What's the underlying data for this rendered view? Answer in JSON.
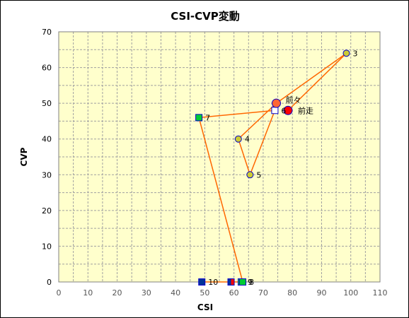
{
  "chart_data": {
    "type": "scatter",
    "title": "CSI-CVP変動",
    "xlabel": "CSI",
    "ylabel": "CVP",
    "xlim": [
      0,
      110
    ],
    "ylim": [
      0,
      70
    ],
    "x_major_ticks": [
      0,
      10,
      20,
      30,
      40,
      50,
      60,
      70,
      80,
      90,
      100,
      110
    ],
    "y_major_ticks": [
      0,
      10,
      20,
      30,
      40,
      50,
      60,
      70
    ],
    "x_minor_step": 5,
    "y_minor_step": 5,
    "grid": true,
    "colors": {
      "plot_background": "#ffffcc",
      "grid": "#a0a0a0",
      "line": "#ff6600",
      "yellow_marker": "#cccc33",
      "green_marker": "#00cc33",
      "blue_marker": "#003399",
      "red_marker": "#ff0000",
      "orange_marker": "#ff6633",
      "marker_outline": "#0000cc"
    },
    "path_order": [
      "10",
      "9",
      "8",
      "7",
      "6",
      "5",
      "4",
      "前々",
      "3",
      "前走"
    ],
    "points": [
      {
        "label": "10",
        "x": 49,
        "y": 0,
        "shape": "square",
        "fill": "blue"
      },
      {
        "label": "",
        "x": 59,
        "y": 0,
        "shape": "square",
        "fill": "blue_red"
      },
      {
        "label": "9",
        "x": 62.5,
        "y": 0,
        "shape": "square",
        "fill": "green_blue"
      },
      {
        "label": "8",
        "x": 63,
        "y": 0,
        "shape": "square",
        "fill": "green"
      },
      {
        "label": "7",
        "x": 48,
        "y": 46,
        "shape": "square",
        "fill": "green"
      },
      {
        "label": "6",
        "x": 74,
        "y": 48,
        "shape": "square",
        "fill": "white"
      },
      {
        "label": "5",
        "x": 65.5,
        "y": 30,
        "shape": "circle",
        "fill": "yellow"
      },
      {
        "label": "4",
        "x": 61.5,
        "y": 40,
        "shape": "circle",
        "fill": "yellow"
      },
      {
        "label": "前々",
        "x": 74.5,
        "y": 50,
        "shape": "circle",
        "fill": "orange"
      },
      {
        "label": "3",
        "x": 98.5,
        "y": 64,
        "shape": "circle",
        "fill": "yellow"
      },
      {
        "label": "前走",
        "x": 78.5,
        "y": 48,
        "shape": "circle",
        "fill": "red"
      }
    ]
  }
}
